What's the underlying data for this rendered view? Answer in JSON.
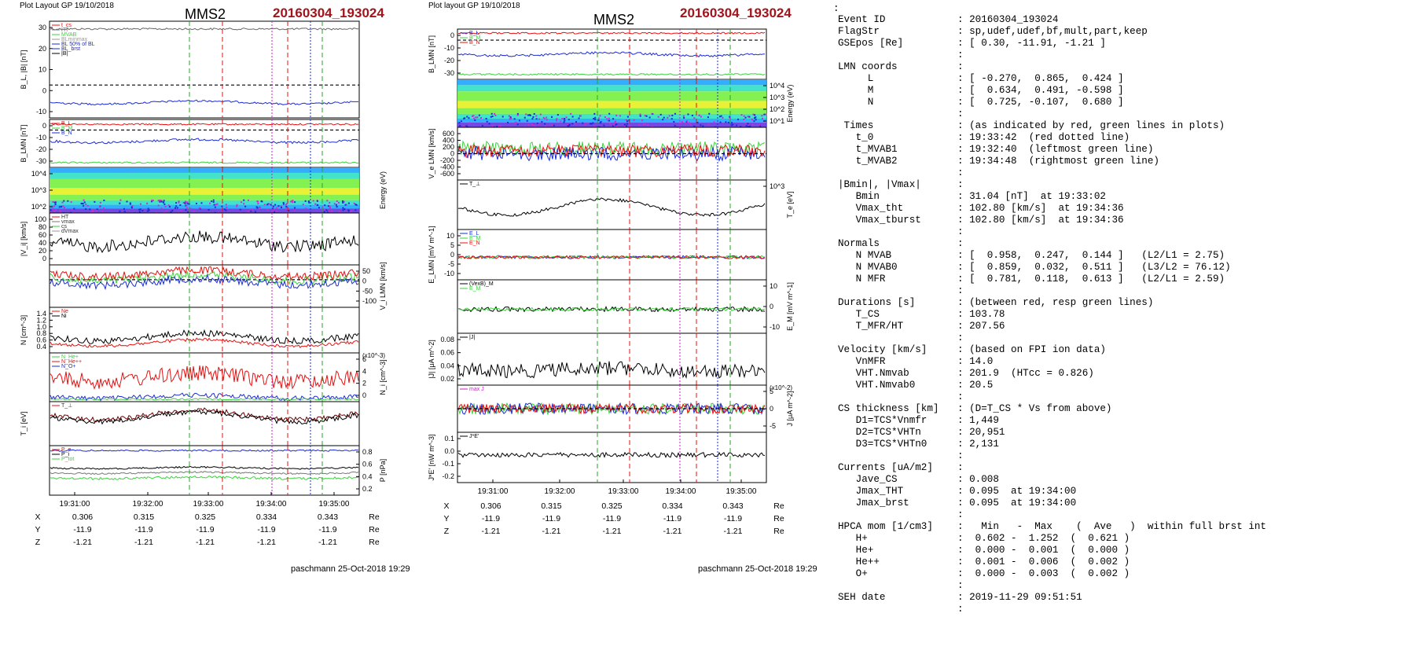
{
  "left_figure": {
    "header": "Plot Layout GP 19/10/2018",
    "spacecraft": "MMS2",
    "event": "20160304_193024",
    "footer": "paschmann 25-Oct-2018 19:29",
    "time_ticks": [
      "19:31:00",
      "19:32:00",
      "19:33:00",
      "19:34:00",
      "19:35:00"
    ],
    "ephemeris": {
      "rows": [
        {
          "label": "X",
          "values": [
            "0.306",
            "0.315",
            "0.325",
            "0.334",
            "0.343"
          ],
          "unit": "Re"
        },
        {
          "label": "Y",
          "values": [
            "-11.9",
            "-11.9",
            "-11.9",
            "-11.9",
            "-11.9"
          ],
          "unit": "Re"
        },
        {
          "label": "Z",
          "values": [
            "-1.21",
            "-1.21",
            "-1.21",
            "-1.21",
            "-1.21"
          ],
          "unit": "Re"
        }
      ]
    }
  },
  "right_figure": {
    "header": "Plot layout GP 19/10/2018",
    "spacecraft": "MMS2",
    "event": "20160304_193024",
    "footer": "paschmann 25-Oct-2018 19:29",
    "time_ticks": [
      "19:31:00",
      "19:32:00",
      "19:33:00",
      "19:34:00",
      "19:35:00"
    ],
    "ephemeris": {
      "rows": [
        {
          "label": "X",
          "values": [
            "0.306",
            "0.315",
            "0.325",
            "0.334",
            "0.343"
          ],
          "unit": "Re"
        },
        {
          "label": "Y",
          "values": [
            "-11.9",
            "-11.9",
            "-11.9",
            "-11.9",
            "-11.9"
          ],
          "unit": "Re"
        },
        {
          "label": "Z",
          "values": [
            "-1.21",
            "-1.21",
            "-1.21",
            "-1.21",
            "-1.21"
          ],
          "unit": "Re"
        }
      ]
    }
  },
  "info_panel": {
    "top_marker": ":",
    "lines": [
      [
        "Event ID",
        ": 20160304_193024"
      ],
      [
        "FlagStr",
        ": sp,udef,udef,bf,mult,part,keep"
      ],
      [
        "GSEpos [Re]",
        ": [ 0.30, -11.91, -1.21 ]"
      ],
      [
        "",
        ":"
      ],
      [
        "LMN coords",
        ":"
      ],
      [
        "     L",
        ": [ -0.270,  0.865,  0.424 ]"
      ],
      [
        "     M",
        ": [  0.634,  0.491, -0.598 ]"
      ],
      [
        "     N",
        ": [  0.725, -0.107,  0.680 ]"
      ],
      [
        "",
        ":"
      ],
      [
        " Times",
        ": (as indicated by red, green lines in plots)"
      ],
      [
        "   t_0",
        ": 19:33:42  (red dotted line)"
      ],
      [
        "   t_MVAB1",
        ": 19:32:40  (leftmost green line)"
      ],
      [
        "   t_MVAB2",
        ": 19:34:48  (rightmost green line)"
      ],
      [
        "",
        ":"
      ],
      [
        "|Bmin|, |Vmax|",
        ":"
      ],
      [
        "   Bmin",
        ": 31.04 [nT]  at 19:33:02"
      ],
      [
        "   Vmax_tht",
        ": 102.80 [km/s]  at 19:34:36"
      ],
      [
        "   Vmax_tburst",
        ": 102.80 [km/s]  at 19:34:36"
      ],
      [
        "",
        ":"
      ],
      [
        "Normals",
        ":"
      ],
      [
        "   N MVAB",
        ": [  0.958,  0.247,  0.144 ]   (L2/L1 = 2.75)"
      ],
      [
        "   N MVAB0",
        ": [  0.859,  0.032,  0.511 ]   (L3/L2 = 76.12)"
      ],
      [
        "   N MFR",
        ": [  0.781,  0.118,  0.613 ]   (L2/L1 = 2.59)"
      ],
      [
        "",
        ":"
      ],
      [
        "Durations [s]",
        ": (between red, resp green lines)"
      ],
      [
        "   T_CS",
        ": 103.78"
      ],
      [
        "   T_MFR/HT",
        ": 207.56"
      ],
      [
        "",
        ":"
      ],
      [
        "Velocity [km/s]",
        ": (based on FPI ion data)"
      ],
      [
        "   VnMFR",
        ": 14.0"
      ],
      [
        "   VHT.Nmvab",
        ": 201.9  (HTcc = 0.826)"
      ],
      [
        "   VHT.Nmvab0",
        ": 20.5"
      ],
      [
        "",
        ":"
      ],
      [
        "CS thickness [km]",
        ": (D=T_CS * Vs from above)"
      ],
      [
        "   D1=TCS*Vnmfr",
        ": 1,449"
      ],
      [
        "   D2=TCS*VHTn",
        ": 20,951"
      ],
      [
        "   D3=TCS*VHTn0",
        ": 2,131"
      ],
      [
        "",
        ":"
      ],
      [
        "Currents [uA/m2]",
        ":"
      ],
      [
        "   Jave_CS",
        ": 0.008"
      ],
      [
        "   Jmax_THT",
        ": 0.095  at 19:34:00"
      ],
      [
        "   Jmax_brst",
        ": 0.095  at 19:34:00"
      ],
      [
        "",
        ":"
      ],
      [
        "HPCA mom [1/cm3]",
        ":   Min   -  Max    (  Ave   )  within full brst int"
      ],
      [
        "   H+",
        ":  0.602 -  1.252  (  0.621 )"
      ],
      [
        "   He+",
        ":  0.000 -  0.001  (  0.000 )"
      ],
      [
        "   He++",
        ":  0.001 -  0.006  (  0.002 )"
      ],
      [
        "   O+",
        ":  0.000 -  0.003  (  0.002 )"
      ],
      [
        "",
        ":"
      ],
      [
        "SEH date",
        ": 2019-11-29 09:51:51"
      ],
      [
        "",
        ":"
      ]
    ]
  },
  "chart_data": [
    {
      "type": "line",
      "figure": "left",
      "panels": [
        {
          "id": "B",
          "ylabel": "B_L, |B| [nT]",
          "yticks": [
            "30",
            "20",
            "10",
            "0",
            "-10"
          ],
          "legend": [
            "t_cs",
            "HT",
            "MVAB",
            "BLminmax",
            "BL 50% of BL",
            "BL_brst",
            "|B|"
          ]
        },
        {
          "id": "BLMN",
          "ylabel": "B_LMN [nT]",
          "yticks": [
            "0",
            "-10",
            "-20",
            "-30"
          ],
          "legend": [
            "B_L",
            "B_M",
            "B_N"
          ]
        },
        {
          "id": "Espec",
          "ylabel": "Energy (eV)",
          "yticks": [
            "10^4",
            "10^3",
            "10^2"
          ]
        },
        {
          "id": "Vmag",
          "ylabel": "|V_i| [km/s]",
          "yticks": [
            "100",
            "80",
            "60",
            "40",
            "20",
            "0"
          ],
          "legend": [
            "HT",
            "vmax",
            "cs",
            "dVmax"
          ]
        },
        {
          "id": "VLMN",
          "ylabel": "V_i LMN [km/s]",
          "yticks": [
            "50",
            "0",
            "-50",
            "-100"
          ]
        },
        {
          "id": "N",
          "ylabel": "N [cm^-3]",
          "yticks": [
            "1.4",
            "1.2",
            "1.0",
            "0.8",
            "0.6",
            "0.4"
          ],
          "legend": [
            "Ne",
            "Ni"
          ]
        },
        {
          "id": "Nheavy",
          "ylabel": "N_i [cm^-3]",
          "yticks": [
            "6",
            "4",
            "2",
            "0"
          ],
          "scale_note": "(x10^-3)",
          "legend": [
            "N_He+",
            "N_He++",
            "N_O+"
          ]
        },
        {
          "id": "T",
          "ylabel": "T_i [eV]",
          "legend": [
            "T_⊥"
          ]
        },
        {
          "id": "P",
          "ylabel": "P [nPa]",
          "yticks": [
            "0.8",
            "0.6",
            "0.4",
            "0.2"
          ],
          "legend": [
            "P_e",
            "P_i",
            "P_tot"
          ]
        }
      ]
    },
    {
      "type": "line",
      "figure": "right",
      "panels": [
        {
          "id": "BLMN",
          "ylabel": "B_LMN [nT]",
          "yticks": [
            "0",
            "-10",
            "-20",
            "-30"
          ],
          "legend": [
            "B_L",
            "B_M",
            "B_N"
          ]
        },
        {
          "id": "Espec",
          "ylabel": "Energy (eV)",
          "yticks": [
            "10^4",
            "10^3",
            "10^2",
            "10^1"
          ]
        },
        {
          "id": "VeLMN",
          "ylabel": "V_e LMN [km/s]",
          "yticks": [
            "600",
            "400",
            "200",
            "0",
            "-200",
            "-400",
            "-600"
          ]
        },
        {
          "id": "Te",
          "ylabel": "T_e [eV]",
          "yticks": [
            "10^3"
          ],
          "legend": [
            "T_⊥"
          ]
        },
        {
          "id": "ELMN",
          "ylabel": "E_LMN [mV m^-1]",
          "yticks": [
            "10",
            "5",
            "0",
            "-5",
            "-10"
          ],
          "legend": [
            "E_L",
            "E_M",
            "E_N"
          ]
        },
        {
          "id": "EM",
          "ylabel": "E_M [mV m^-1]",
          "yticks": [
            "10",
            "0",
            "-10"
          ],
          "legend": [
            "(VexB)_M",
            "E_M"
          ]
        },
        {
          "id": "Jmag",
          "ylabel": "|J| [μA m^-2]",
          "yticks": [
            "0.08",
            "0.06",
            "0.04",
            "0.02"
          ],
          "legend": [
            "|J|"
          ]
        },
        {
          "id": "JLMN",
          "ylabel": "J [μA m^-2]",
          "yticks": [
            "5",
            "0",
            "-5"
          ],
          "scale_note": "(x10^-2)",
          "legend": [
            "max J"
          ]
        },
        {
          "id": "JE",
          "ylabel": "J*E' [nW m^-3]",
          "yticks": [
            "0.1",
            "0.0",
            "-0.1",
            "-0.2"
          ],
          "legend": [
            "J*E'"
          ]
        }
      ]
    }
  ],
  "colors": {
    "event_red": "#a0151b",
    "blue": "#1b2bd6",
    "red": "#e8100f",
    "green": "#3bd23b",
    "magenta": "#d01ad0"
  }
}
